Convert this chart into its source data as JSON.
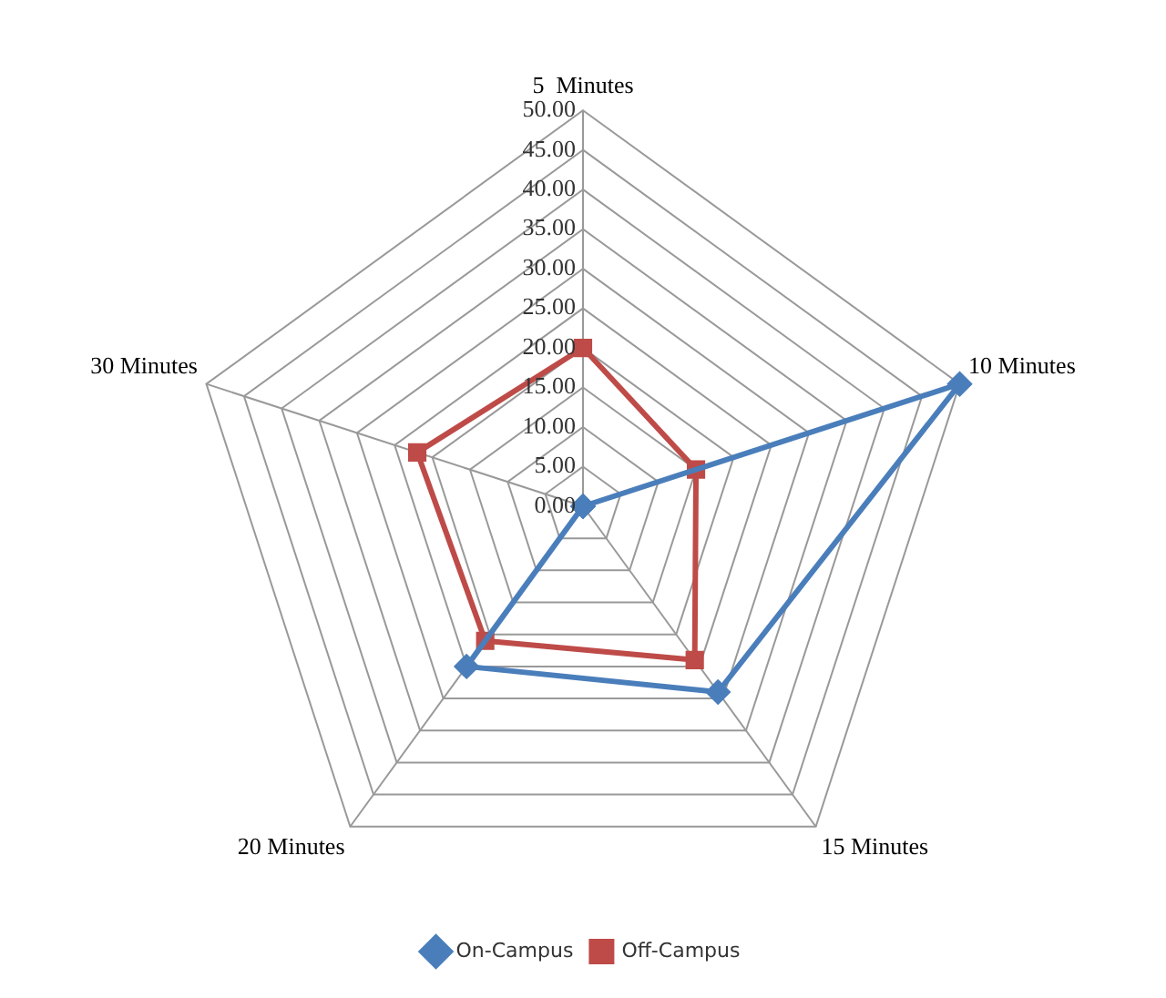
{
  "chart_data": {
    "type": "radar",
    "categories": [
      "5  Minutes",
      "10 Minutes",
      "15 Minutes",
      "20 Minutes",
      "30 Minutes"
    ],
    "series": [
      {
        "name": "On-Campus",
        "color": "#4a7ebb",
        "values": [
          0,
          50,
          29,
          25,
          0
        ],
        "marker": "diamond"
      },
      {
        "name": "Off-Campus",
        "color": "#be4b48",
        "values": [
          20,
          15,
          24,
          21,
          22
        ],
        "marker": "square"
      }
    ],
    "ylim": [
      0,
      50
    ],
    "yticks": [
      {
        "value": 0,
        "label": "0.00"
      },
      {
        "value": 5,
        "label": "5.00"
      },
      {
        "value": 10,
        "label": "10.00"
      },
      {
        "value": 15,
        "label": "15.00"
      },
      {
        "value": 20,
        "label": "20.00"
      },
      {
        "value": 25,
        "label": "25.00"
      },
      {
        "value": 30,
        "label": "30.00"
      },
      {
        "value": 35,
        "label": "35.00"
      },
      {
        "value": 40,
        "label": "40.00"
      },
      {
        "value": 45,
        "label": "45.00"
      },
      {
        "value": 50,
        "label": "50.00"
      }
    ],
    "grid": true,
    "legend": "bottom"
  }
}
